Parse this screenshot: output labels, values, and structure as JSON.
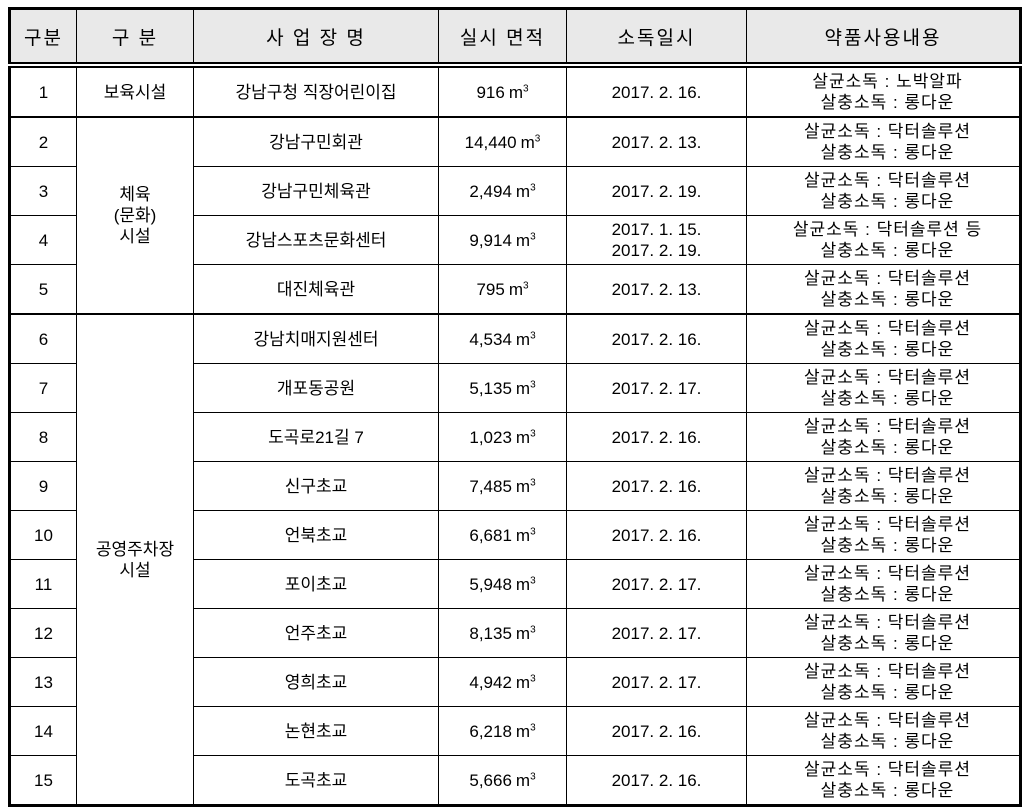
{
  "colors": {
    "header_background": "#e9e9e9",
    "border": "#000000",
    "text": "#000000",
    "page_background": "#ffffff"
  },
  "table": {
    "headers": [
      "구분",
      "구 분",
      "사 업 장 명",
      "실시 면적",
      "소독일시",
      "약품사용내용"
    ],
    "rows": [
      {
        "no": "1",
        "group": {
          "lines": [
            "보육시설"
          ],
          "span": 1
        },
        "group_start": false,
        "name": "강남구청 직장어린이집",
        "area_value": "916",
        "area_unit": "㎥",
        "dates": [
          "2017. 2. 16."
        ],
        "chemicals": [
          "살균소독 : 노박알파",
          "살충소독 : 롱다운"
        ]
      },
      {
        "no": "2",
        "group": {
          "lines": [
            "체육",
            "(문화)",
            "시설"
          ],
          "span": 4
        },
        "group_start": true,
        "name": "강남구민회관",
        "area_value": "14,440",
        "area_unit": "㎥",
        "dates": [
          "2017. 2. 13."
        ],
        "chemicals": [
          "살균소독 : 닥터솔루션",
          "살충소독 : 롱다운"
        ]
      },
      {
        "no": "3",
        "name": "강남구민체육관",
        "area_value": "2,494",
        "area_unit": "㎥",
        "dates": [
          "2017. 2. 19."
        ],
        "chemicals": [
          "살균소독 : 닥터솔루션",
          "살충소독 : 롱다운"
        ]
      },
      {
        "no": "4",
        "name": "강남스포츠문화센터",
        "area_value": "9,914",
        "area_unit": "㎥",
        "dates": [
          "2017. 1. 15.",
          "2017. 2. 19."
        ],
        "chemicals": [
          "살균소독 : 닥터솔루션 등",
          "살충소독 : 롱다운"
        ]
      },
      {
        "no": "5",
        "name": "대진체육관",
        "area_value": "795",
        "area_unit": "㎥",
        "dates": [
          "2017. 2. 13."
        ],
        "chemicals": [
          "살균소독 : 닥터솔루션",
          "살충소독 : 롱다운"
        ]
      },
      {
        "no": "6",
        "group": {
          "lines": [
            "공영주차장",
            "시설"
          ],
          "span": 10
        },
        "group_start": true,
        "name": "강남치매지원센터",
        "area_value": "4,534",
        "area_unit": "㎥",
        "dates": [
          "2017. 2. 16."
        ],
        "chemicals": [
          "살균소독 : 닥터솔루션",
          "살충소독 : 롱다운"
        ]
      },
      {
        "no": "7",
        "name": "개포동공원",
        "area_value": "5,135",
        "area_unit": "㎥",
        "dates": [
          "2017. 2. 17."
        ],
        "chemicals": [
          "살균소독 : 닥터솔루션",
          "살충소독 : 롱다운"
        ]
      },
      {
        "no": "8",
        "name": "도곡로21길 7",
        "area_value": "1,023",
        "area_unit": "㎥",
        "dates": [
          "2017. 2. 16."
        ],
        "chemicals": [
          "살균소독 : 닥터솔루션",
          "살충소독 : 롱다운"
        ]
      },
      {
        "no": "9",
        "name": "신구초교",
        "area_value": "7,485",
        "area_unit": "㎥",
        "dates": [
          "2017. 2. 16."
        ],
        "chemicals": [
          "살균소독 : 닥터솔루션",
          "살충소독 : 롱다운"
        ]
      },
      {
        "no": "10",
        "name": "언북초교",
        "area_value": "6,681",
        "area_unit": "㎥",
        "dates": [
          "2017. 2. 16."
        ],
        "chemicals": [
          "살균소독 : 닥터솔루션",
          "살충소독 : 롱다운"
        ]
      },
      {
        "no": "11",
        "name": "포이초교",
        "area_value": "5,948",
        "area_unit": "㎥",
        "dates": [
          "2017. 2. 17."
        ],
        "chemicals": [
          "살균소독 : 닥터솔루션",
          "살충소독 : 롱다운"
        ]
      },
      {
        "no": "12",
        "name": "언주초교",
        "area_value": "8,135",
        "area_unit": "㎥",
        "dates": [
          "2017. 2. 17."
        ],
        "chemicals": [
          "살균소독 : 닥터솔루션",
          "살충소독 : 롱다운"
        ]
      },
      {
        "no": "13",
        "name": "영희초교",
        "area_value": "4,942",
        "area_unit": "㎥",
        "dates": [
          "2017. 2. 17."
        ],
        "chemicals": [
          "살균소독 : 닥터솔루션",
          "살충소독 : 롱다운"
        ]
      },
      {
        "no": "14",
        "name": "논현초교",
        "area_value": "6,218",
        "area_unit": "㎥",
        "dates": [
          "2017. 2. 16."
        ],
        "chemicals": [
          "살균소독 : 닥터솔루션",
          "살충소독 : 롱다운"
        ]
      },
      {
        "no": "15",
        "name": "도곡초교",
        "area_value": "5,666",
        "area_unit": "㎥",
        "dates": [
          "2017. 2. 16."
        ],
        "chemicals": [
          "살균소독 : 닥터솔루션",
          "살충소독 : 롱다운"
        ]
      }
    ]
  }
}
